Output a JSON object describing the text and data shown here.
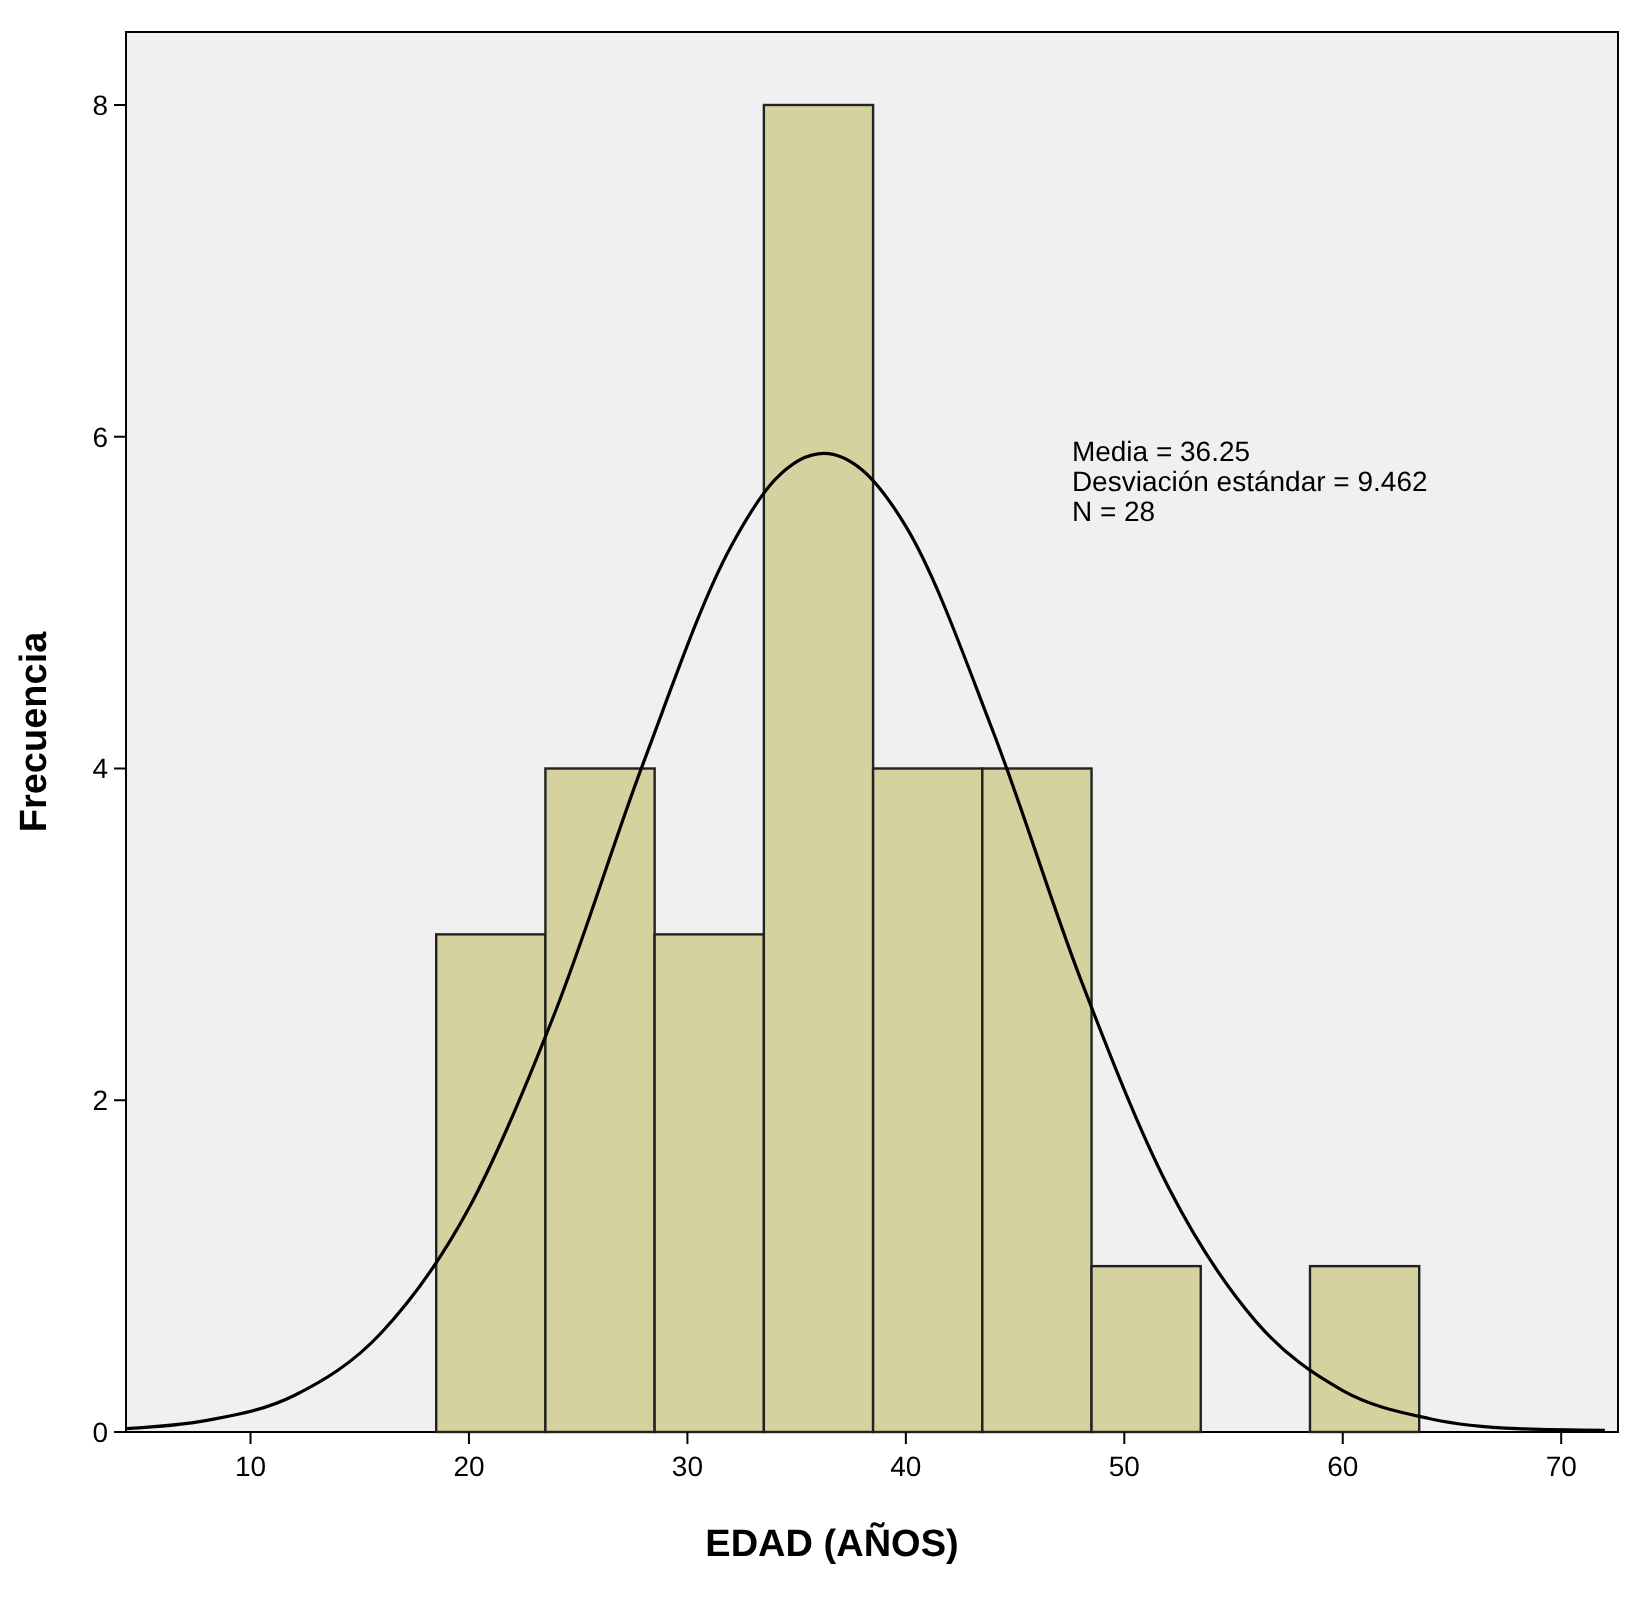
{
  "chart_data": {
    "type": "histogram",
    "xlabel": "EDAD (AÑOS)",
    "ylabel": "Frecuencia",
    "bins": [
      18.5,
      23.5,
      28.5,
      33.5,
      38.5,
      43.5,
      48.5,
      53.5,
      58.5,
      63.5
    ],
    "values": [
      3,
      4,
      3,
      8,
      4,
      4,
      1,
      0,
      1
    ],
    "color": "#d6d2a0",
    "series": [
      {
        "type": "line",
        "color": "#000000",
        "x": [
          4.3,
          8,
          12,
          16,
          20,
          24,
          28,
          32,
          34,
          36.25,
          38,
          40,
          44,
          48,
          52,
          56,
          60,
          64,
          68,
          72
        ],
        "values": [
          0.02,
          0.07,
          0.22,
          0.6,
          1.35,
          2.55,
          4.04,
          5.34,
          5.74,
          5.9,
          5.8,
          5.46,
          4.22,
          2.73,
          1.48,
          0.67,
          0.25,
          0.08,
          0.02,
          0.01
        ]
      }
    ],
    "xlim": [
      4.3,
      72.6
    ],
    "xticks": [
      10,
      20,
      30,
      40,
      50,
      60,
      70
    ],
    "ylim": [
      0,
      8.44
    ],
    "yticks": [
      0,
      2,
      4,
      6,
      8
    ],
    "grid": false,
    "marker": "none",
    "annotations": [
      "Media = 36.25",
      "Desviación estándar = 9.462",
      "N = 28"
    ]
  }
}
